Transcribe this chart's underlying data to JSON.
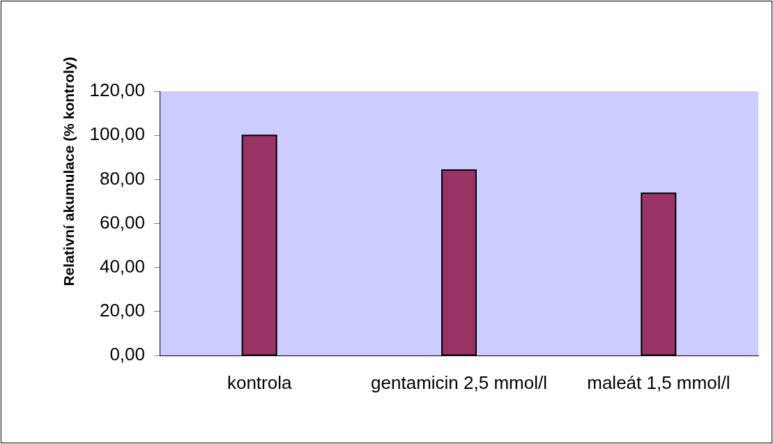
{
  "chart_data": {
    "type": "bar",
    "ylabel": "Relativní akumulace (% kontroly)",
    "categories": [
      "kontrola",
      "gentamicin 2,5 mmol/l",
      "maleát 1,5 mmol/l"
    ],
    "values": [
      100,
      84.2,
      73.7
    ],
    "color": "#993366",
    "ylim": [
      0,
      120
    ],
    "yticks": [
      {
        "value": 0,
        "label": "0,00"
      },
      {
        "value": 20,
        "label": "20,00"
      },
      {
        "value": 40,
        "label": "40,00"
      },
      {
        "value": 60,
        "label": "60,00"
      },
      {
        "value": 80,
        "label": "80,00"
      },
      {
        "value": 100,
        "label": "100,00"
      },
      {
        "value": 120,
        "label": "120,00"
      }
    ],
    "grid": false,
    "legend": false
  }
}
